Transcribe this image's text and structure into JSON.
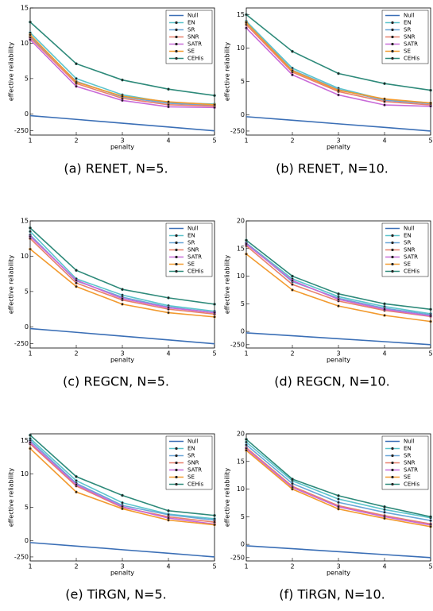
{
  "chart_data": [
    {
      "type": "line",
      "title": "(a) RENET, N=5.",
      "xlabel": "penalty",
      "ylabel": "effective reliability",
      "x": [
        1,
        2,
        3,
        4,
        5
      ],
      "xlim": [
        1,
        5
      ],
      "xticks": [
        1,
        2,
        3,
        4,
        5
      ],
      "ylim": [
        -1000,
        15
      ],
      "yticks": [
        -250,
        0,
        5,
        10,
        15
      ],
      "yscale": "log-below-zero",
      "legend": "upper right",
      "series": [
        {
          "name": "Null",
          "color": "#3b6fb6",
          "values": [
            -0.8,
            -5,
            -20,
            -70,
            -250
          ]
        },
        {
          "name": "EN",
          "color": "#5cc4cc",
          "values": [
            11.5,
            5,
            2.7,
            1.6,
            1.4
          ]
        },
        {
          "name": "SR",
          "color": "#6aa6d8",
          "values": [
            11,
            4.6,
            2.4,
            1.5,
            1.2
          ]
        },
        {
          "name": "SNR",
          "color": "#e8806c",
          "values": [
            10.8,
            4.3,
            2.2,
            1.3,
            1.1
          ]
        },
        {
          "name": "SATR",
          "color": "#c86ad8",
          "values": [
            10.5,
            3.9,
            1.9,
            1,
            0.9
          ]
        },
        {
          "name": "SE",
          "color": "#f29a2e",
          "values": [
            11.2,
            4.5,
            2.5,
            1.7,
            1.3
          ]
        },
        {
          "name": "CEHis",
          "color": "#2e8a7a",
          "values": [
            13,
            7.1,
            4.8,
            3.5,
            2.6
          ]
        }
      ]
    },
    {
      "type": "line",
      "title": "(b) RENET, N=10.",
      "xlabel": "penalty",
      "ylabel": "effective reliability",
      "x": [
        1,
        2,
        3,
        4,
        5
      ],
      "xlim": [
        1,
        5
      ],
      "xticks": [
        1,
        2,
        3,
        4,
        5
      ],
      "ylim": [
        -1000,
        16
      ],
      "yticks": [
        -250,
        0,
        5,
        10,
        15
      ],
      "yscale": "log-below-zero",
      "legend": "upper right",
      "series": [
        {
          "name": "Null",
          "color": "#3b6fb6",
          "values": [
            -0.8,
            -5,
            -20,
            -70,
            -250
          ]
        },
        {
          "name": "EN",
          "color": "#5cc4cc",
          "values": [
            14,
            7,
            4,
            2.3,
            1.8
          ]
        },
        {
          "name": "SR",
          "color": "#6aa6d8",
          "values": [
            13.8,
            6.7,
            3.8,
            2.2,
            1.7
          ]
        },
        {
          "name": "SNR",
          "color": "#e8806c",
          "values": [
            13.5,
            6.4,
            3.5,
            2,
            1.5
          ]
        },
        {
          "name": "SATR",
          "color": "#c86ad8",
          "values": [
            13,
            6,
            3,
            1.5,
            1.3
          ]
        },
        {
          "name": "SE",
          "color": "#f29a2e",
          "values": [
            13.8,
            6.6,
            3.7,
            2.4,
            1.8
          ]
        },
        {
          "name": "CEHis",
          "color": "#2e8a7a",
          "values": [
            15,
            9.5,
            6.2,
            4.7,
            3.7
          ]
        }
      ]
    },
    {
      "type": "line",
      "title": "(c) REGCN, N=5.",
      "xlabel": "penalty",
      "ylabel": "effective reliability",
      "x": [
        1,
        2,
        3,
        4,
        5
      ],
      "xlim": [
        1,
        5
      ],
      "xticks": [
        1,
        2,
        3,
        4,
        5
      ],
      "ylim": [
        -1000,
        15
      ],
      "yticks": [
        -250,
        0,
        5,
        10,
        15
      ],
      "yscale": "log-below-zero",
      "legend": "upper right",
      "series": [
        {
          "name": "Null",
          "color": "#3b6fb6",
          "values": [
            -0.8,
            -5,
            -20,
            -70,
            -250
          ]
        },
        {
          "name": "EN",
          "color": "#5cc4cc",
          "values": [
            13.5,
            6.8,
            4.5,
            3,
            2.2
          ]
        },
        {
          "name": "SR",
          "color": "#6aa6d8",
          "values": [
            13,
            6.5,
            4.2,
            2.8,
            2
          ]
        },
        {
          "name": "SNR",
          "color": "#e8806c",
          "values": [
            12.5,
            6.2,
            3.8,
            2.5,
            1.8
          ]
        },
        {
          "name": "SATR",
          "color": "#c86ad8",
          "values": [
            12.8,
            6.6,
            4,
            2.7,
            2
          ]
        },
        {
          "name": "SE",
          "color": "#f29a2e",
          "values": [
            11,
            5.7,
            3.2,
            2,
            1.4
          ]
        },
        {
          "name": "CEHis",
          "color": "#2e8a7a",
          "values": [
            14,
            8,
            5.3,
            4.1,
            3.2
          ]
        }
      ]
    },
    {
      "type": "line",
      "title": "(d) REGCN, N=10.",
      "xlabel": "penalty",
      "ylabel": "effective reliability",
      "x": [
        1,
        2,
        3,
        4,
        5
      ],
      "xlim": [
        1,
        5
      ],
      "xticks": [
        1,
        2,
        3,
        4,
        5
      ],
      "ylim": [
        -1000,
        20
      ],
      "yticks": [
        -250,
        0,
        5,
        10,
        15,
        20
      ],
      "yscale": "log-below-zero",
      "legend": "upper right",
      "series": [
        {
          "name": "Null",
          "color": "#3b6fb6",
          "values": [
            -0.8,
            -5,
            -20,
            -70,
            -250
          ]
        },
        {
          "name": "EN",
          "color": "#5cc4cc",
          "values": [
            16,
            9.5,
            6.3,
            4.5,
            3.2
          ]
        },
        {
          "name": "SR",
          "color": "#6aa6d8",
          "values": [
            16,
            9,
            6,
            4.2,
            3
          ]
        },
        {
          "name": "SNR",
          "color": "#e8806c",
          "values": [
            15.5,
            8.5,
            5.5,
            3.8,
            2.7
          ]
        },
        {
          "name": "SATR",
          "color": "#c86ad8",
          "values": [
            15.8,
            9.2,
            5.8,
            4,
            2.8
          ]
        },
        {
          "name": "SE",
          "color": "#f29a2e",
          "values": [
            14,
            7.5,
            4.6,
            2.9,
            1.8
          ]
        },
        {
          "name": "CEHis",
          "color": "#2e8a7a",
          "values": [
            16.5,
            10,
            6.8,
            5,
            4
          ]
        }
      ]
    },
    {
      "type": "line",
      "title": "(e) TiRGN, N=5.",
      "xlabel": "penalty",
      "ylabel": "effective reliability",
      "x": [
        1,
        2,
        3,
        4,
        5
      ],
      "xlim": [
        1,
        5
      ],
      "xticks": [
        1,
        2,
        3,
        4,
        5
      ],
      "ylim": [
        -1000,
        16
      ],
      "yticks": [
        -250,
        0,
        5,
        10,
        15
      ],
      "yscale": "log-below-zero",
      "legend": "upper right",
      "series": [
        {
          "name": "Null",
          "color": "#3b6fb6",
          "values": [
            -0.8,
            -5,
            -20,
            -70,
            -250
          ]
        },
        {
          "name": "EN",
          "color": "#5cc4cc",
          "values": [
            15.3,
            9,
            5.7,
            4,
            3.3
          ]
        },
        {
          "name": "SR",
          "color": "#6aa6d8",
          "values": [
            15,
            8.6,
            5.3,
            3.9,
            3.1
          ]
        },
        {
          "name": "SNR",
          "color": "#e8806c",
          "values": [
            14.5,
            8.2,
            5,
            3.6,
            2.8
          ]
        },
        {
          "name": "SATR",
          "color": "#c86ad8",
          "values": [
            14.7,
            8.4,
            5.1,
            3.4,
            2.5
          ]
        },
        {
          "name": "SE",
          "color": "#f29a2e",
          "values": [
            13.8,
            7.3,
            4.8,
            3.1,
            2.4
          ]
        },
        {
          "name": "CEHis",
          "color": "#2e8a7a",
          "values": [
            15.8,
            9.6,
            6.8,
            4.5,
            3.8
          ]
        }
      ]
    },
    {
      "type": "line",
      "title": "(f) TiRGN, N=10.",
      "xlabel": "penalty",
      "ylabel": "effective reliability",
      "x": [
        1,
        2,
        3,
        4,
        5
      ],
      "xlim": [
        1,
        5
      ],
      "xticks": [
        1,
        2,
        3,
        4,
        5
      ],
      "ylim": [
        -1000,
        20
      ],
      "yticks": [
        -250,
        0,
        5,
        10,
        15,
        20
      ],
      "yscale": "log-below-zero",
      "legend": "upper right",
      "series": [
        {
          "name": "Null",
          "color": "#3b6fb6",
          "values": [
            -0.8,
            -5,
            -20,
            -70,
            -250
          ]
        },
        {
          "name": "EN",
          "color": "#5cc4cc",
          "values": [
            18.5,
            11.5,
            8.2,
            6.3,
            4.8
          ]
        },
        {
          "name": "SR",
          "color": "#6aa6d8",
          "values": [
            18,
            11,
            7.6,
            5.8,
            4.3
          ]
        },
        {
          "name": "SNR",
          "color": "#e8806c",
          "values": [
            17.5,
            10.5,
            7,
            5.2,
            3.7
          ]
        },
        {
          "name": "SATR",
          "color": "#c86ad8",
          "values": [
            17.3,
            10.3,
            6.8,
            5,
            3.5
          ]
        },
        {
          "name": "SE",
          "color": "#f29a2e",
          "values": [
            17,
            10,
            6.4,
            4.7,
            3.2
          ]
        },
        {
          "name": "CEHis",
          "color": "#2e8a7a",
          "values": [
            19,
            11.8,
            8.8,
            6.8,
            5
          ]
        }
      ]
    }
  ]
}
